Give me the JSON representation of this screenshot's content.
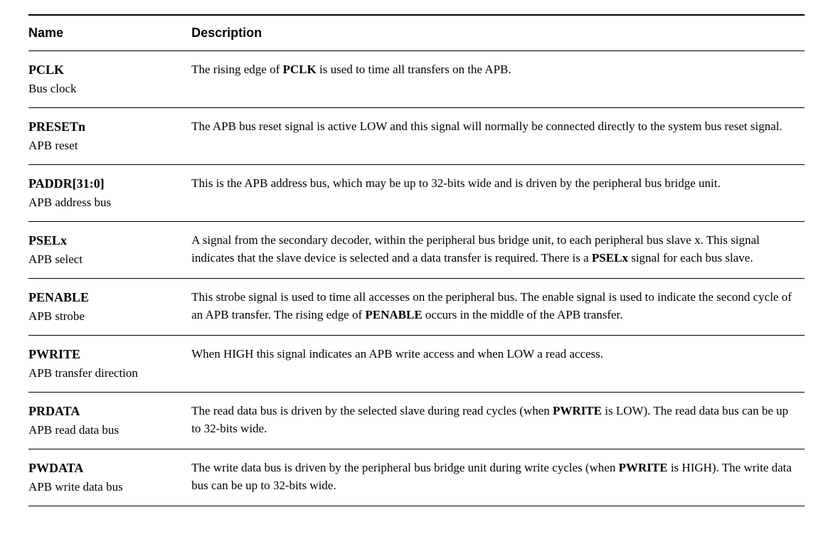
{
  "table": {
    "type": "table",
    "columns": [
      {
        "label": "Name",
        "width_percent": 21,
        "align": "left"
      },
      {
        "label": "Description",
        "width_percent": 79,
        "align": "left"
      }
    ],
    "header_style": {
      "border_top": "2px solid #000000",
      "border_bottom": "1.5px solid #000000",
      "font_family": "Arial, Helvetica, sans-serif",
      "font_weight": "bold",
      "font_size_pt": 13,
      "color": "#000000"
    },
    "row_border": "1px solid #000000",
    "body_font": {
      "font_family": "Times New Roman, Times, serif",
      "font_size_pt": 13,
      "color": "#000000",
      "line_height": 1.45
    },
    "name_font": {
      "font_weight": "bold",
      "font_size_pt": 13
    },
    "subtitle_font": {
      "font_weight": "normal",
      "font_size_pt": 13
    },
    "background_color": "#ffffff",
    "rows": [
      {
        "signal": "PCLK",
        "subtitle": "Bus clock",
        "desc_parts": [
          {
            "text": "The rising edge of ",
            "bold": false
          },
          {
            "text": "PCLK",
            "bold": true
          },
          {
            "text": " is used to time all transfers on the APB.",
            "bold": false
          }
        ]
      },
      {
        "signal": "PRESETn",
        "subtitle": "APB reset",
        "desc_parts": [
          {
            "text": "The APB bus reset signal is active LOW and this signal will normally be connected directly to the system bus reset signal.",
            "bold": false
          }
        ]
      },
      {
        "signal": "PADDR[31:0]",
        "subtitle": "APB address bus",
        "desc_parts": [
          {
            "text": "This is the APB address bus, which may be up to 32-bits wide and is driven by the peripheral bus bridge unit.",
            "bold": false
          }
        ]
      },
      {
        "signal": "PSELx",
        "subtitle": "APB select",
        "desc_parts": [
          {
            "text": "A signal from the secondary decoder, within the peripheral bus bridge unit, to each peripheral bus slave x. This signal indicates that the slave device is selected and a data transfer is required. There is a ",
            "bold": false
          },
          {
            "text": "PSELx",
            "bold": true
          },
          {
            "text": " signal for each bus slave.",
            "bold": false
          }
        ]
      },
      {
        "signal": "PENABLE",
        "subtitle": "APB strobe",
        "desc_parts": [
          {
            "text": "This strobe signal is used to time all accesses on the peripheral bus. The enable signal is used to indicate the second cycle of an APB transfer. The rising edge of ",
            "bold": false
          },
          {
            "text": "PENABLE",
            "bold": true
          },
          {
            "text": " occurs in the middle of the APB transfer.",
            "bold": false
          }
        ]
      },
      {
        "signal": "PWRITE",
        "subtitle": "APB transfer direction",
        "desc_parts": [
          {
            "text": "When HIGH this signal indicates an APB write access and when LOW a read access.",
            "bold": false
          }
        ]
      },
      {
        "signal": "PRDATA",
        "subtitle": "APB read data bus",
        "desc_parts": [
          {
            "text": "The read data bus is driven by the selected slave during read cycles (when ",
            "bold": false
          },
          {
            "text": "PWRITE",
            "bold": true
          },
          {
            "text": " is LOW). The read data bus can be up to 32-bits wide.",
            "bold": false
          }
        ]
      },
      {
        "signal": "PWDATA",
        "subtitle": "APB write data bus",
        "desc_parts": [
          {
            "text": "The write data bus is driven by the peripheral bus bridge unit during write cycles (when ",
            "bold": false
          },
          {
            "text": "PWRITE",
            "bold": true
          },
          {
            "text": " is HIGH). The write data bus can be up to 32-bits wide.",
            "bold": false
          }
        ]
      }
    ]
  }
}
